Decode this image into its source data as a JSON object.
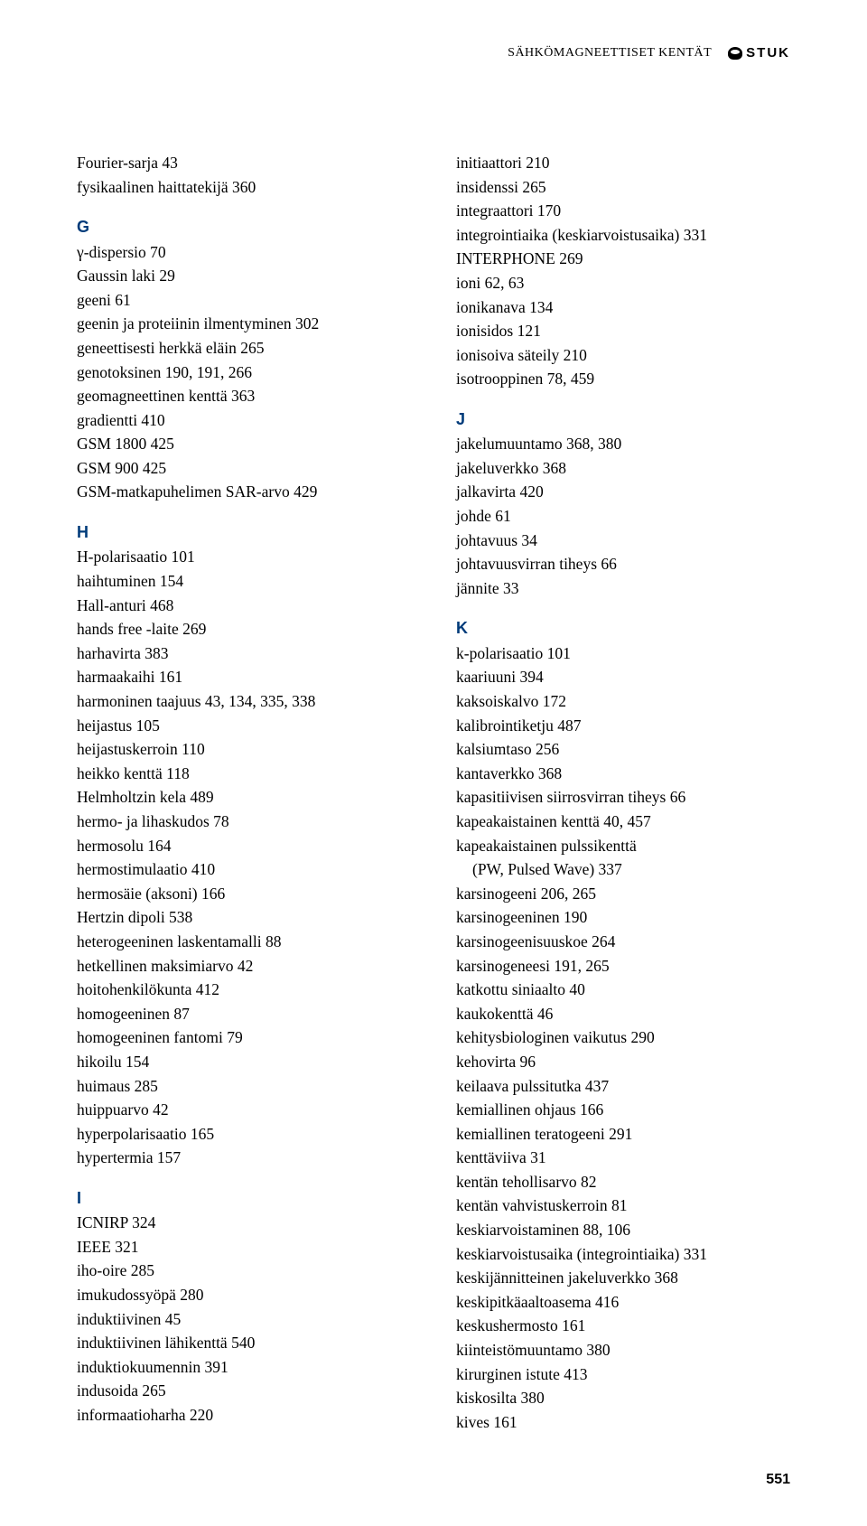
{
  "header": {
    "title": "SÄHKÖMAGNEETTISET KENTÄT",
    "logo_text": "STUK"
  },
  "page_number": "551",
  "columns": [
    [
      {
        "t": "entry",
        "text": "Fourier-sarja 43"
      },
      {
        "t": "entry",
        "text": "fysikaalinen haittatekijä 360"
      },
      {
        "t": "gap"
      },
      {
        "t": "head",
        "text": "G"
      },
      {
        "t": "entry",
        "text": "γ-dispersio 70"
      },
      {
        "t": "entry",
        "text": "Gaussin laki 29"
      },
      {
        "t": "entry",
        "text": "geeni 61"
      },
      {
        "t": "entry",
        "text": "geenin ja proteiinin ilmentyminen 302"
      },
      {
        "t": "entry",
        "text": "geneettisesti herkkä eläin 265"
      },
      {
        "t": "entry",
        "text": "genotoksinen 190, 191, 266"
      },
      {
        "t": "entry",
        "text": "geomagneettinen kenttä 363"
      },
      {
        "t": "entry",
        "text": "gradientti 410"
      },
      {
        "t": "entry",
        "text": "GSM 1800 425"
      },
      {
        "t": "entry",
        "text": "GSM 900 425"
      },
      {
        "t": "entry",
        "text": "GSM-matkapuhelimen SAR-arvo 429"
      },
      {
        "t": "gap"
      },
      {
        "t": "head",
        "text": "H"
      },
      {
        "t": "entry",
        "text": "H-polarisaatio 101"
      },
      {
        "t": "entry",
        "text": "haihtuminen 154"
      },
      {
        "t": "entry",
        "text": "Hall-anturi 468"
      },
      {
        "t": "entry",
        "text": "hands free -laite 269"
      },
      {
        "t": "entry",
        "text": "harhavirta 383"
      },
      {
        "t": "entry",
        "text": "harmaakaihi 161"
      },
      {
        "t": "entry",
        "text": "harmoninen taajuus 43, 134, 335, 338"
      },
      {
        "t": "entry",
        "text": "heijastus 105"
      },
      {
        "t": "entry",
        "text": "heijastuskerroin 110"
      },
      {
        "t": "entry",
        "text": "heikko kenttä 118"
      },
      {
        "t": "entry",
        "text": "Helmholtzin kela 489"
      },
      {
        "t": "entry",
        "text": "hermo- ja lihaskudos 78"
      },
      {
        "t": "entry",
        "text": "hermosolu 164"
      },
      {
        "t": "entry",
        "text": "hermostimulaatio 410"
      },
      {
        "t": "entry",
        "text": "hermosäie (aksoni) 166"
      },
      {
        "t": "entry",
        "text": "Hertzin dipoli 538"
      },
      {
        "t": "entry",
        "text": "heterogeeninen laskentamalli 88"
      },
      {
        "t": "entry",
        "text": "hetkellinen maksimiarvo 42"
      },
      {
        "t": "entry",
        "text": "hoitohenkilökunta 412"
      },
      {
        "t": "entry",
        "text": "homogeeninen 87"
      },
      {
        "t": "entry",
        "text": "homogeeninen fantomi 79"
      },
      {
        "t": "entry",
        "text": "hikoilu 154"
      },
      {
        "t": "entry",
        "text": "huimaus 285"
      },
      {
        "t": "entry",
        "text": "huippuarvo 42"
      },
      {
        "t": "entry",
        "text": "hyperpolarisaatio 165"
      },
      {
        "t": "entry",
        "text": "hypertermia 157"
      },
      {
        "t": "gap"
      },
      {
        "t": "head",
        "text": "I"
      },
      {
        "t": "entry",
        "text": "ICNIRP 324"
      },
      {
        "t": "entry",
        "text": "IEEE 321"
      },
      {
        "t": "entry",
        "text": "iho-oire 285"
      },
      {
        "t": "entry",
        "text": "imukudossyöpä 280"
      },
      {
        "t": "entry",
        "text": "induktiivinen 45"
      },
      {
        "t": "entry",
        "text": "induktiivinen lähikenttä 540"
      },
      {
        "t": "entry",
        "text": "induktiokuumennin 391"
      },
      {
        "t": "entry",
        "text": "indusoida 265"
      },
      {
        "t": "entry",
        "text": "informaatioharha 220"
      }
    ],
    [
      {
        "t": "entry",
        "text": "initiaattori 210"
      },
      {
        "t": "entry",
        "text": "insidenssi 265"
      },
      {
        "t": "entry",
        "text": "integraattori 170"
      },
      {
        "t": "entry",
        "text": "integrointiaika (keskiarvoistusaika) 331"
      },
      {
        "t": "entry",
        "text": "INTERPHONE 269"
      },
      {
        "t": "entry",
        "text": "ioni 62, 63"
      },
      {
        "t": "entry",
        "text": "ionikanava 134"
      },
      {
        "t": "entry",
        "text": "ionisidos 121"
      },
      {
        "t": "entry",
        "text": "ionisoiva säteily 210"
      },
      {
        "t": "entry",
        "text": "isotrooppinen 78, 459"
      },
      {
        "t": "gap"
      },
      {
        "t": "head",
        "text": "J"
      },
      {
        "t": "entry",
        "text": "jakelumuuntamo 368, 380"
      },
      {
        "t": "entry",
        "text": "jakeluverkko 368"
      },
      {
        "t": "entry",
        "text": "jalkavirta 420"
      },
      {
        "t": "entry",
        "text": "johde 61"
      },
      {
        "t": "entry",
        "text": "johtavuus 34"
      },
      {
        "t": "entry",
        "text": "johtavuusvirran tiheys 66"
      },
      {
        "t": "entry",
        "text": "jännite 33"
      },
      {
        "t": "gap"
      },
      {
        "t": "head",
        "text": "K"
      },
      {
        "t": "entry",
        "text": "k-polarisaatio 101"
      },
      {
        "t": "entry",
        "text": "kaariuuni 394"
      },
      {
        "t": "entry",
        "text": "kaksoiskalvo 172"
      },
      {
        "t": "entry",
        "text": "kalibrointiketju 487"
      },
      {
        "t": "entry",
        "text": "kalsiumtaso 256"
      },
      {
        "t": "entry",
        "text": "kantaverkko 368"
      },
      {
        "t": "entry",
        "text": "kapasitiivisen siirrosvirran tiheys 66"
      },
      {
        "t": "entry",
        "text": "kapeakaistainen kenttä 40, 457"
      },
      {
        "t": "entry",
        "text": "kapeakaistainen pulssikenttä"
      },
      {
        "t": "indent",
        "text": "(PW, Pulsed Wave) 337"
      },
      {
        "t": "entry",
        "text": "karsinogeeni 206, 265"
      },
      {
        "t": "entry",
        "text": "karsinogeeninen 190"
      },
      {
        "t": "entry",
        "text": "karsinogeenisuuskoe 264"
      },
      {
        "t": "entry",
        "text": "karsinogeneesi 191, 265"
      },
      {
        "t": "entry",
        "text": "katkottu siniaalto 40"
      },
      {
        "t": "entry",
        "text": "kaukokenttä 46"
      },
      {
        "t": "entry",
        "text": "kehitysbiologinen vaikutus 290"
      },
      {
        "t": "entry",
        "text": "kehovirta 96"
      },
      {
        "t": "entry",
        "text": "keilaava pulssitutka 437"
      },
      {
        "t": "entry",
        "text": "kemiallinen ohjaus 166"
      },
      {
        "t": "entry",
        "text": "kemiallinen teratogeeni 291"
      },
      {
        "t": "entry",
        "text": "kenttäviiva 31"
      },
      {
        "t": "entry",
        "text": "kentän tehollisarvo 82"
      },
      {
        "t": "entry",
        "text": "kentän vahvistuskerroin 81"
      },
      {
        "t": "entry",
        "text": "keskiarvoistaminen 88, 106"
      },
      {
        "t": "entry",
        "text": "keskiarvoistusaika (integrointiaika) 331"
      },
      {
        "t": "entry",
        "text": "keskijännitteinen jakeluverkko 368"
      },
      {
        "t": "entry",
        "text": "keskipitkäaaltoasema 416"
      },
      {
        "t": "entry",
        "text": "keskushermosto 161"
      },
      {
        "t": "entry",
        "text": "kiinteistömuuntamo 380"
      },
      {
        "t": "entry",
        "text": "kirurginen istute 413"
      },
      {
        "t": "entry",
        "text": "kiskosilta 380"
      },
      {
        "t": "entry",
        "text": "kives 161"
      }
    ]
  ]
}
